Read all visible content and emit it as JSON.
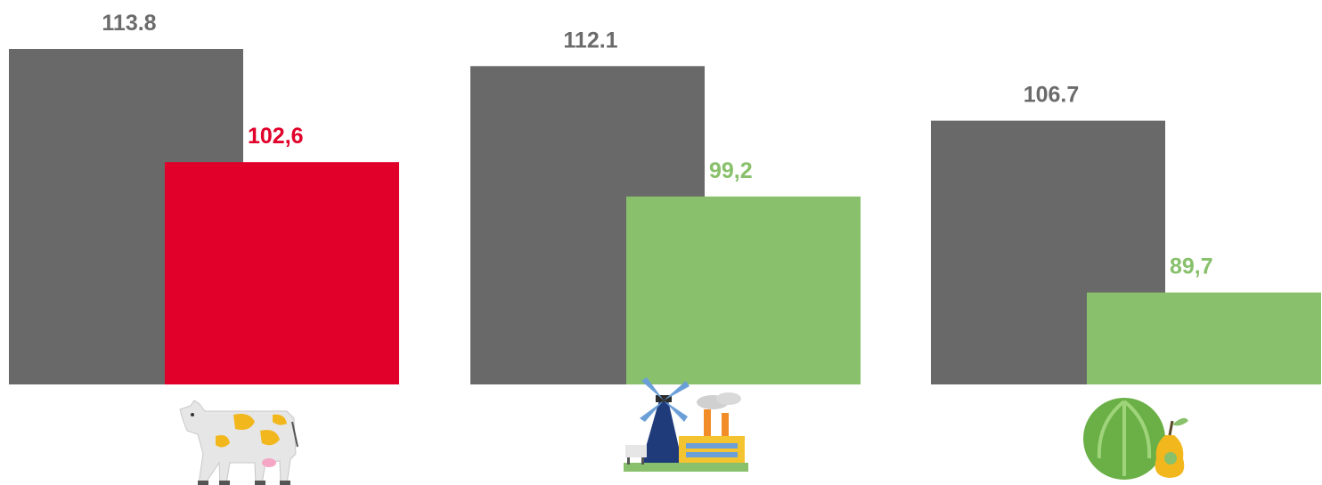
{
  "chart_data": {
    "type": "bar",
    "groups": [
      {
        "icon": "cow-icon",
        "bars": [
          {
            "value": 113.8,
            "label": "113.8",
            "color": "#696969",
            "label_color": "#6b6b6b"
          },
          {
            "value": 102.6,
            "label": "102,6",
            "color": "#e0002a",
            "label_color": "#e0002a"
          }
        ]
      },
      {
        "icon": "windmill-factory-icon",
        "bars": [
          {
            "value": 112.1,
            "label": "112.1",
            "color": "#696969",
            "label_color": "#6b6b6b"
          },
          {
            "value": 99.2,
            "label": "99,2",
            "color": "#88c06b",
            "label_color": "#88c06b"
          }
        ]
      },
      {
        "icon": "cabbage-pear-icon",
        "bars": [
          {
            "value": 106.7,
            "label": "106.7",
            "color": "#696969",
            "label_color": "#6b6b6b"
          },
          {
            "value": 89.7,
            "label": "89,7",
            "color": "#88c06b",
            "label_color": "#88c06b"
          }
        ]
      }
    ],
    "baseline": 80.6,
    "ymax": 115,
    "grid": false,
    "legend": "none"
  }
}
